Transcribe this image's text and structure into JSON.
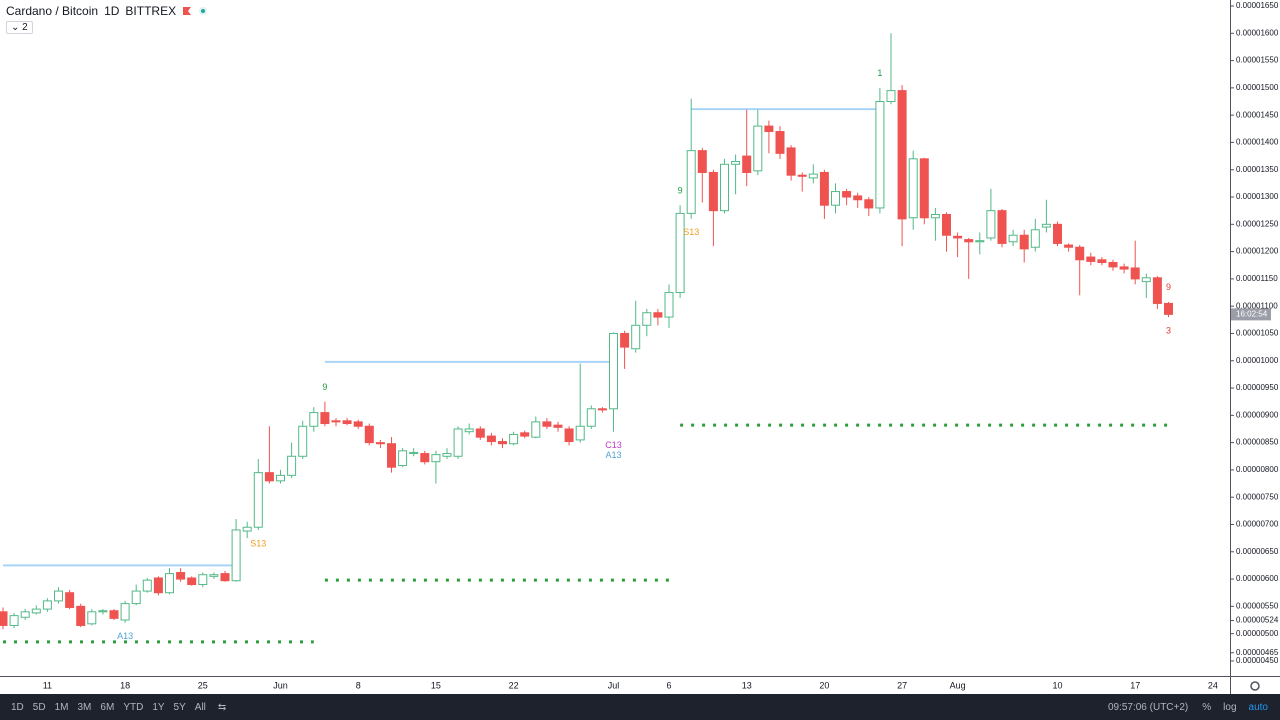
{
  "header": {
    "symbol": "Cardano / Bitcoin",
    "interval": "1D",
    "exchange": "BITTREX",
    "indicator_count": "2"
  },
  "toolbar": {
    "ranges": [
      "1D",
      "5D",
      "1M",
      "3M",
      "6M",
      "YTD",
      "1Y",
      "5Y",
      "All"
    ],
    "time": "09:57:06 (UTC+2)",
    "scale_buttons": [
      "%",
      "log",
      "auto"
    ]
  },
  "chart_data": {
    "type": "candlestick",
    "categories": [
      null,
      null,
      null,
      null,
      "11",
      null,
      null,
      null,
      null,
      null,
      null,
      "18",
      null,
      null,
      null,
      null,
      null,
      null,
      "25",
      null,
      null,
      null,
      null,
      null,
      null,
      "Jun",
      null,
      null,
      null,
      null,
      null,
      null,
      "8",
      null,
      null,
      null,
      null,
      null,
      null,
      "15",
      null,
      null,
      null,
      null,
      null,
      null,
      "22",
      null,
      null,
      null,
      null,
      null,
      null,
      null,
      null,
      "Jul",
      null,
      null,
      null,
      null,
      "6",
      null,
      null,
      null,
      null,
      null,
      null,
      "13",
      null,
      null,
      null,
      null,
      null,
      null,
      "20",
      null,
      null,
      null,
      null,
      null,
      null,
      "27",
      null,
      null,
      null,
      null,
      "Aug",
      null,
      null,
      null,
      null,
      null,
      null,
      null,
      null,
      "10",
      null,
      null,
      null,
      null,
      null,
      null,
      "17",
      null,
      null,
      null,
      null,
      null,
      null,
      "24",
      null
    ],
    "open": [
      5.4e-06,
      5.15e-06,
      5.3e-06,
      5.38e-06,
      5.45e-06,
      5.6e-06,
      5.75e-06,
      5.5e-06,
      5.18e-06,
      5.4e-06,
      5.42e-06,
      5.25e-06,
      5.55e-06,
      5.78e-06,
      6.02e-06,
      5.75e-06,
      6.12e-06,
      6.02e-06,
      5.9e-06,
      6.05e-06,
      6.1e-06,
      5.97e-06,
      6.88e-06,
      6.95e-06,
      7.95e-06,
      7.8e-06,
      7.9e-06,
      8.25e-06,
      8.8e-06,
      9.05e-06,
      8.9e-06,
      8.9e-06,
      8.88e-06,
      8.8e-06,
      8.5e-06,
      8.48e-06,
      8.08e-06,
      8.3e-06,
      8.3e-06,
      8.15e-06,
      8.25e-06,
      8.25e-06,
      8.7e-06,
      8.75e-06,
      8.62e-06,
      8.52e-06,
      8.48e-06,
      8.68e-06,
      8.6e-06,
      8.88e-06,
      8.82e-06,
      8.75e-06,
      8.55e-06,
      8.8e-06,
      9.12e-06,
      9.12e-06,
      1.05e-05,
      1.022e-05,
      1.065e-05,
      1.088e-05,
      1.08e-05,
      1.125e-05,
      1.27e-05,
      1.385e-05,
      1.345e-05,
      1.275e-05,
      1.36e-05,
      1.375e-05,
      1.348e-05,
      1.43e-05,
      1.42e-05,
      1.39e-05,
      1.34e-05,
      1.335e-05,
      1.345e-05,
      1.285e-05,
      1.31e-05,
      1.302e-05,
      1.295e-05,
      1.28e-05,
      1.475e-05,
      1.495e-05,
      1.262e-05,
      1.37e-05,
      1.262e-05,
      1.268e-05,
      1.228e-05,
      1.222e-05,
      1.218e-05,
      1.225e-05,
      1.275e-05,
      1.218e-05,
      1.23e-05,
      1.208e-05,
      1.245e-05,
      1.25e-05,
      1.212e-05,
      1.208e-05,
      1.19e-05,
      1.185e-05,
      1.18e-05,
      1.172e-05,
      1.17e-05,
      1.145e-05,
      1.152e-05,
      1.105e-05,
      null,
      null,
      null,
      null,
      null
    ],
    "high": [
      5.48e-06,
      5.38e-06,
      5.45e-06,
      5.52e-06,
      5.65e-06,
      5.85e-06,
      5.8e-06,
      5.55e-06,
      5.45e-06,
      5.45e-06,
      5.45e-06,
      5.6e-06,
      5.9e-06,
      6.02e-06,
      6.05e-06,
      6.2e-06,
      6.2e-06,
      6.05e-06,
      6.12e-06,
      6.12e-06,
      6.15e-06,
      7.1e-06,
      7.05e-06,
      8.2e-06,
      8.8e-06,
      8e-06,
      8.5e-06,
      8.9e-06,
      9.15e-06,
      9.25e-06,
      8.95e-06,
      8.95e-06,
      8.92e-06,
      8.85e-06,
      8.55e-06,
      8.6e-06,
      8.4e-06,
      8.4e-06,
      8.35e-06,
      8.35e-06,
      8.4e-06,
      8.8e-06,
      8.85e-06,
      8.8e-06,
      8.68e-06,
      8.58e-06,
      8.7e-06,
      8.72e-06,
      8.98e-06,
      8.95e-06,
      8.88e-06,
      8.8e-06,
      9.95e-06,
      9.18e-06,
      9.15e-06,
      1.052e-05,
      1.055e-05,
      1.11e-05,
      1.095e-05,
      1.095e-05,
      1.14e-05,
      1.285e-05,
      1.48e-05,
      1.39e-05,
      1.35e-05,
      1.37e-05,
      1.378e-05,
      1.46e-05,
      1.46e-05,
      1.44e-05,
      1.43e-05,
      1.395e-05,
      1.345e-05,
      1.36e-05,
      1.35e-05,
      1.325e-05,
      1.315e-05,
      1.308e-05,
      1.3e-05,
      1.5e-05,
      1.6e-05,
      1.505e-05,
      1.385e-05,
      1.372e-05,
      1.28e-05,
      1.272e-05,
      1.235e-05,
      1.225e-05,
      1.235e-05,
      1.315e-05,
      1.278e-05,
      1.24e-05,
      1.24e-05,
      1.26e-05,
      1.295e-05,
      1.255e-05,
      1.215e-05,
      1.212e-05,
      1.198e-05,
      1.19e-05,
      1.185e-05,
      1.178e-05,
      1.22e-05,
      1.16e-05,
      1.155e-05,
      1.108e-05,
      null,
      null,
      null,
      null,
      null
    ],
    "low": [
      5.08e-06,
      5.1e-06,
      5.25e-06,
      5.35e-06,
      5.4e-06,
      5.55e-06,
      5.45e-06,
      5.12e-06,
      5.15e-06,
      5.35e-06,
      5.25e-06,
      5.2e-06,
      5.52e-06,
      5.75e-06,
      5.7e-06,
      5.72e-06,
      5.95e-06,
      5.88e-06,
      5.85e-06,
      6e-06,
      5.95e-06,
      5.95e-06,
      6.75e-06,
      6.9e-06,
      7.75e-06,
      7.75e-06,
      7.85e-06,
      8.2e-06,
      8.7e-06,
      8.8e-06,
      8.8e-06,
      8.82e-06,
      8.75e-06,
      8.45e-06,
      8.4e-06,
      7.95e-06,
      8.05e-06,
      8.25e-06,
      8.1e-06,
      7.75e-06,
      8.2e-06,
      8.2e-06,
      8.65e-06,
      8.55e-06,
      8.45e-06,
      8.4e-06,
      8.45e-06,
      8.58e-06,
      8.58e-06,
      8.75e-06,
      8.7e-06,
      8.45e-06,
      8.5e-06,
      8.75e-06,
      9.05e-06,
      8.7e-06,
      9.85e-06,
      1.015e-05,
      1.045e-05,
      1.065e-05,
      1.06e-05,
      1.115e-05,
      1.26e-05,
      1.29e-05,
      1.21e-05,
      1.27e-05,
      1.305e-05,
      1.32e-05,
      1.34e-05,
      1.38e-05,
      1.37e-05,
      1.33e-05,
      1.31e-05,
      1.325e-05,
      1.26e-05,
      1.27e-05,
      1.285e-05,
      1.28e-05,
      1.265e-05,
      1.27e-05,
      1.47e-05,
      1.21e-05,
      1.24e-05,
      1.25e-05,
      1.22e-05,
      1.2e-05,
      1.19e-05,
      1.15e-05,
      1.195e-05,
      1.22e-05,
      1.208e-05,
      1.21e-05,
      1.18e-05,
      1.2e-05,
      1.235e-05,
      1.21e-05,
      1.2e-05,
      1.12e-05,
      1.175e-05,
      1.175e-05,
      1.165e-05,
      1.16e-05,
      1.14e-05,
      1.115e-05,
      1.095e-05,
      1.08e-05,
      null,
      null,
      null,
      null,
      null
    ],
    "close": [
      5.15e-06,
      5.33e-06,
      5.4e-06,
      5.45e-06,
      5.6e-06,
      5.78e-06,
      5.48e-06,
      5.15e-06,
      5.4e-06,
      5.42e-06,
      5.28e-06,
      5.55e-06,
      5.78e-06,
      5.98e-06,
      5.75e-06,
      6.1e-06,
      6e-06,
      5.9e-06,
      6.08e-06,
      6.08e-06,
      5.97e-06,
      6.9e-06,
      6.95e-06,
      7.95e-06,
      7.8e-06,
      7.9e-06,
      8.25e-06,
      8.8e-06,
      9.05e-06,
      8.85e-06,
      8.88e-06,
      8.85e-06,
      8.8e-06,
      8.5e-06,
      8.48e-06,
      8.05e-06,
      8.35e-06,
      8.32e-06,
      8.15e-06,
      8.28e-06,
      8.3e-06,
      8.75e-06,
      8.75e-06,
      8.6e-06,
      8.52e-06,
      8.48e-06,
      8.65e-06,
      8.62e-06,
      8.88e-06,
      8.8e-06,
      8.78e-06,
      8.52e-06,
      8.8e-06,
      9.12e-06,
      9.1e-06,
      1.05e-05,
      1.025e-05,
      1.065e-05,
      1.088e-05,
      1.08e-05,
      1.125e-05,
      1.27e-05,
      1.385e-05,
      1.345e-05,
      1.275e-05,
      1.36e-05,
      1.365e-05,
      1.345e-05,
      1.43e-05,
      1.42e-05,
      1.38e-05,
      1.34e-05,
      1.338e-05,
      1.342e-05,
      1.285e-05,
      1.31e-05,
      1.3e-05,
      1.295e-05,
      1.28e-05,
      1.475e-05,
      1.495e-05,
      1.26e-05,
      1.37e-05,
      1.262e-05,
      1.268e-05,
      1.23e-05,
      1.225e-05,
      1.218e-05,
      1.22e-05,
      1.275e-05,
      1.215e-05,
      1.23e-05,
      1.205e-05,
      1.24e-05,
      1.25e-05,
      1.215e-05,
      1.208e-05,
      1.185e-05,
      1.182e-05,
      1.18e-05,
      1.172e-05,
      1.168e-05,
      1.15e-05,
      1.152e-05,
      1.105e-05,
      1.085e-05,
      null,
      null,
      null,
      null,
      null
    ],
    "up_color": "#53b987",
    "down_color": "#ef5350",
    "ylim": [
      4.224e-06,
      1.661e-05
    ],
    "yticks": [
      {
        "value": 1.65e-05,
        "label": "0.00001650"
      },
      {
        "value": 1.6e-05,
        "label": "0.00001600"
      },
      {
        "value": 1.55e-05,
        "label": "0.00001550"
      },
      {
        "value": 1.5e-05,
        "label": "0.00001500"
      },
      {
        "value": 1.45e-05,
        "label": "0.00001450"
      },
      {
        "value": 1.4e-05,
        "label": "0.00001400"
      },
      {
        "value": 1.35e-05,
        "label": "0.00001350"
      },
      {
        "value": 1.3e-05,
        "label": "0.00001300"
      },
      {
        "value": 1.25e-05,
        "label": "0.00001250"
      },
      {
        "value": 1.2e-05,
        "label": "0.00001200"
      },
      {
        "value": 1.15e-05,
        "label": "0.00001150"
      },
      {
        "value": 1.1e-05,
        "label": "0.00001100"
      },
      {
        "value": 1.05e-05,
        "label": "0.00001050"
      },
      {
        "value": 1e-05,
        "label": "0.00001000"
      },
      {
        "value": 9.5e-06,
        "label": "0.00000950"
      },
      {
        "value": 9e-06,
        "label": "0.00000900"
      },
      {
        "value": 8.5e-06,
        "label": "0.00000850"
      },
      {
        "value": 8e-06,
        "label": "0.00000800"
      },
      {
        "value": 7.5e-06,
        "label": "0.00000750"
      },
      {
        "value": 7e-06,
        "label": "0.00000700"
      },
      {
        "value": 6.5e-06,
        "label": "0.00000650"
      },
      {
        "value": 6e-06,
        "label": "0.00000600"
      },
      {
        "value": 5.5e-06,
        "label": "0.00000550"
      },
      {
        "value": 5.24e-06,
        "label": "0.00000524"
      },
      {
        "value": 5e-06,
        "label": "0.00000500"
      },
      {
        "value": 4.65e-06,
        "label": "0.00000465"
      },
      {
        "value": 4.5e-06,
        "label": "0.00000450"
      }
    ],
    "countdown": "16:02:54",
    "levels": [
      {
        "value": 6.25e-06,
        "from": 0,
        "to": 21,
        "color": "#a8d5f7",
        "style": "solid"
      },
      {
        "value": 9.98e-06,
        "from": 29,
        "to": 55,
        "color": "#a8d5f7",
        "style": "solid"
      },
      {
        "value": 1.461e-05,
        "from": 62,
        "to": 79,
        "color": "#a8d5f7",
        "style": "solid"
      },
      {
        "value": 4.85e-06,
        "from": 0,
        "to": 28,
        "color": "#2e9e3c",
        "style": "dotted"
      },
      {
        "value": 5.98e-06,
        "from": 29,
        "to": 60,
        "color": "#2e9e3c",
        "style": "dotted"
      },
      {
        "value": 8.82e-06,
        "from": 61,
        "to": 105,
        "color": "#2e9e3c",
        "style": "dotted"
      }
    ],
    "annotations": [
      {
        "index": 11,
        "text": "A13",
        "color": "#4fa3d8",
        "position": "below"
      },
      {
        "index": 23,
        "text": "S13",
        "color": "#f0a020",
        "position": "below"
      },
      {
        "index": 29,
        "text": "9",
        "color": "#1b9e3e",
        "position": "above"
      },
      {
        "index": 55,
        "text": "C13",
        "color": "#c040c8",
        "position": "below"
      },
      {
        "index": 55,
        "text": "A13",
        "color": "#4fa3d8",
        "position": "below"
      },
      {
        "index": 61,
        "text": "9",
        "color": "#1b9e3e",
        "position": "above"
      },
      {
        "index": 62,
        "text": "S13",
        "color": "#f0a020",
        "position": "below"
      },
      {
        "index": 79,
        "text": "1",
        "color": "#1b9e3e",
        "position": "above"
      },
      {
        "index": 105,
        "text": "9",
        "color": "#e53935",
        "position": "above"
      },
      {
        "index": 105,
        "text": "3",
        "color": "#e53935",
        "position": "below"
      }
    ]
  }
}
